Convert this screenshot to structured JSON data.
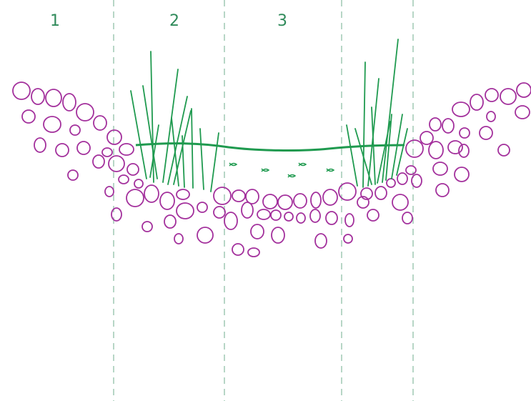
{
  "zones": [
    {
      "label": "1"
    },
    {
      "label": "2"
    },
    {
      "label": "3"
    }
  ]
}
